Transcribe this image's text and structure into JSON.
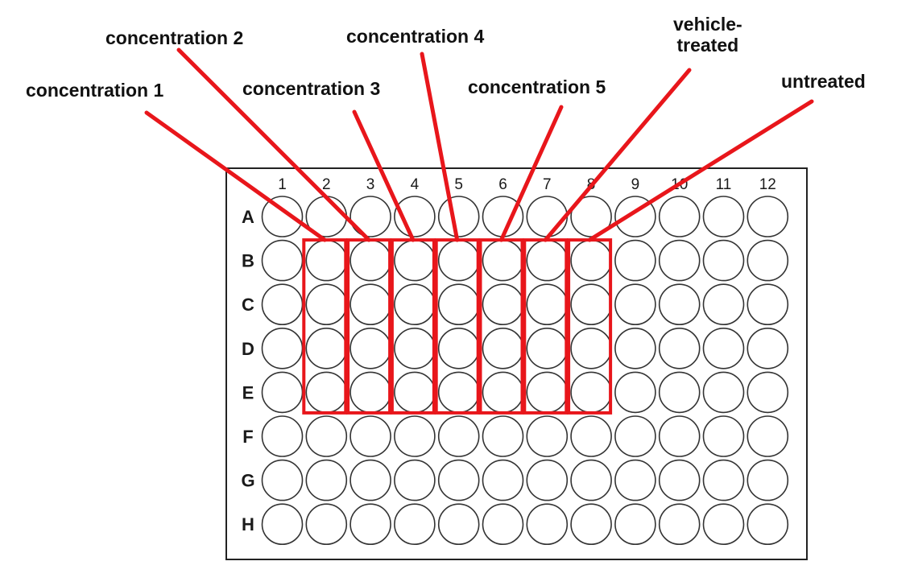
{
  "plate": {
    "columns": [
      "1",
      "2",
      "3",
      "4",
      "5",
      "6",
      "7",
      "8",
      "9",
      "10",
      "11",
      "12"
    ],
    "rows": [
      "A",
      "B",
      "C",
      "D",
      "E",
      "F",
      "G",
      "H"
    ]
  },
  "labels": {
    "concentration_1": "concentration 1",
    "concentration_2": "concentration 2",
    "concentration_3": "concentration 3",
    "concentration_4": "concentration 4",
    "concentration_5": "concentration 5",
    "vehicle_treated_line1": "vehicle-",
    "vehicle_treated_line2": "treated",
    "untreated": "untreated"
  },
  "highlight": {
    "color": "#e8161b",
    "groups": [
      {
        "label_key": "concentration_1",
        "column": "2",
        "row_start": "B",
        "row_end": "E"
      },
      {
        "label_key": "concentration_2",
        "column": "3",
        "row_start": "B",
        "row_end": "E"
      },
      {
        "label_key": "concentration_3",
        "column": "4",
        "row_start": "B",
        "row_end": "E"
      },
      {
        "label_key": "concentration_4",
        "column": "5",
        "row_start": "B",
        "row_end": "E"
      },
      {
        "label_key": "concentration_5",
        "column": "6",
        "row_start": "B",
        "row_end": "E"
      },
      {
        "label_key": "vehicle_treated",
        "column": "7",
        "row_start": "B",
        "row_end": "E"
      },
      {
        "label_key": "untreated",
        "column": "8",
        "row_start": "B",
        "row_end": "E"
      }
    ]
  }
}
